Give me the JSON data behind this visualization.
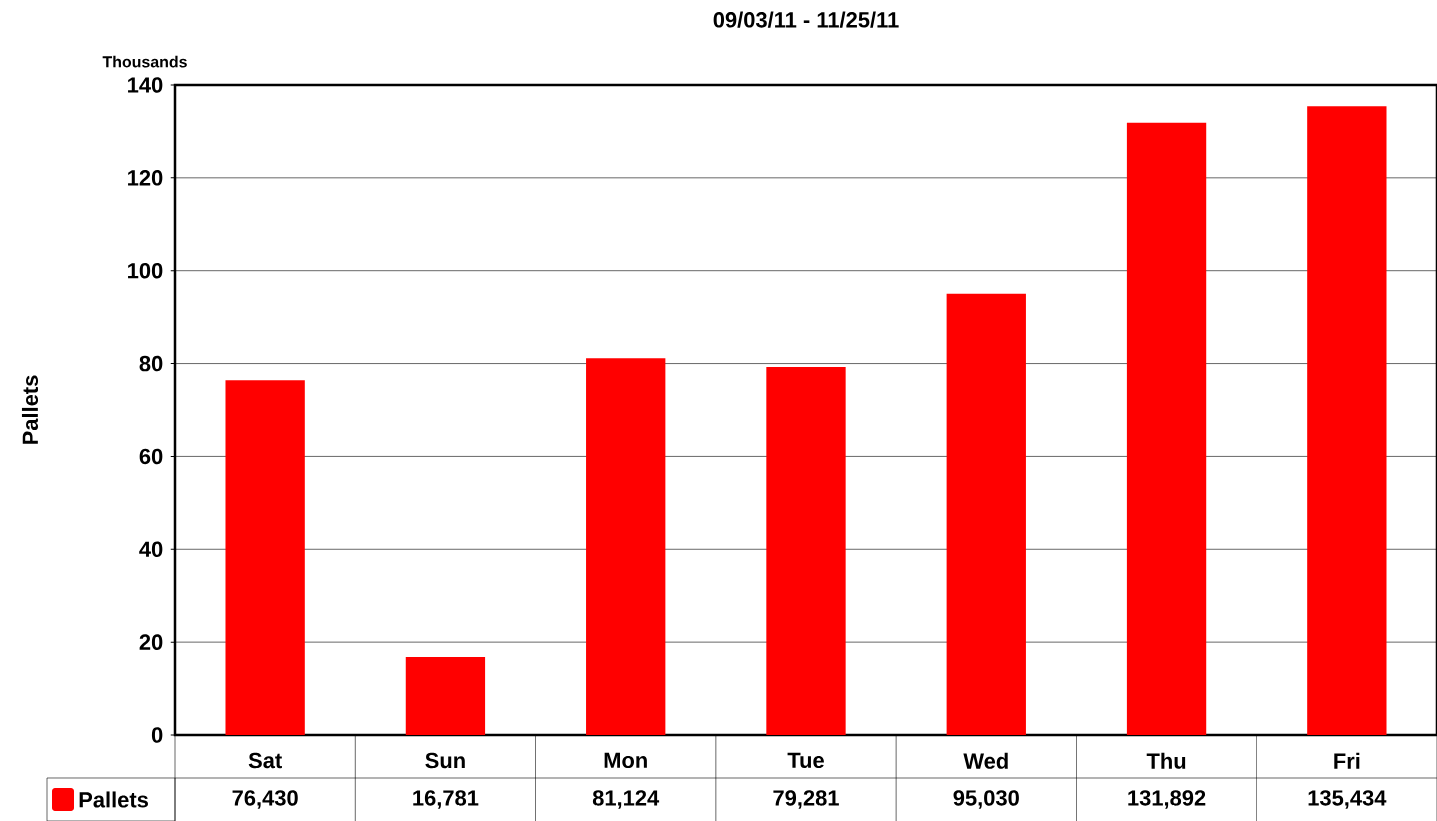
{
  "chart_data": {
    "type": "bar",
    "title": "09/03/11 - 11/25/11",
    "ylabel": "Pallets",
    "annotations": [
      "Thousands"
    ],
    "categories": [
      "Sat",
      "Sun",
      "Mon",
      "Tue",
      "Wed",
      "Thu",
      "Fri"
    ],
    "series": [
      {
        "name": "Pallets",
        "color": "#ff0000",
        "values": [
          76.43,
          16.781,
          81.124,
          79.281,
          95.03,
          131.892,
          135.434
        ]
      }
    ],
    "value_labels": [
      "76,430",
      "16,781",
      "81,124",
      "79,281",
      "95,030",
      "131,892",
      "135,434"
    ],
    "ylim": [
      0,
      140
    ],
    "yticks": [
      0,
      20,
      40,
      60,
      80,
      100,
      120,
      140
    ],
    "grid": "y",
    "legend": "bottom"
  }
}
